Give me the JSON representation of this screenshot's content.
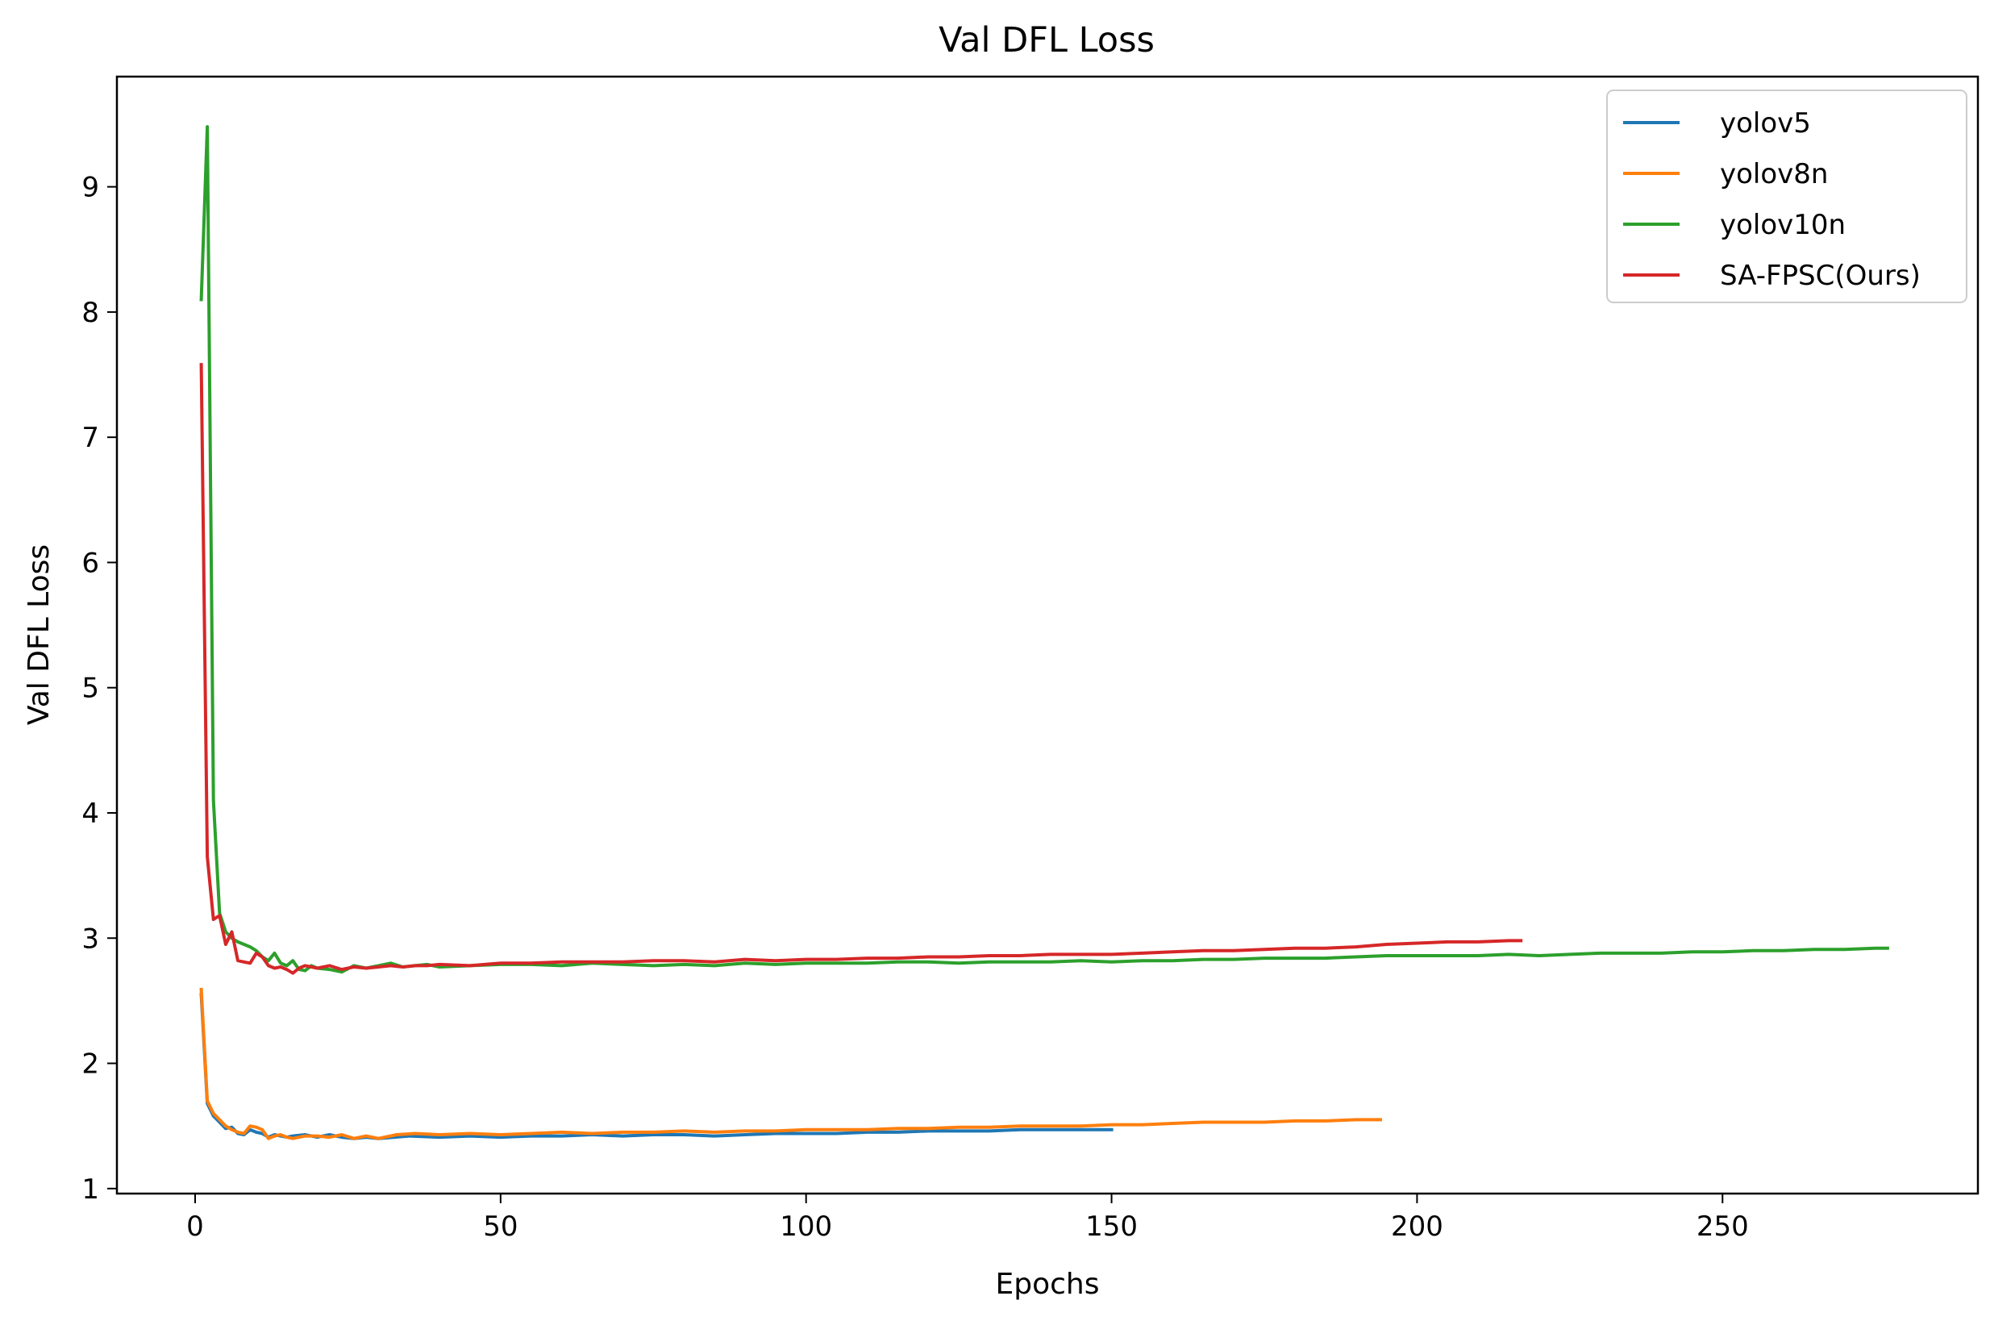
{
  "chart_data": {
    "type": "line",
    "title": "Val DFL Loss",
    "xlabel": "Epochs",
    "ylabel": "Val DFL Loss",
    "xlim": [
      -12.8,
      291.8
    ],
    "ylim": [
      0.96,
      9.88
    ],
    "xticks": [
      0,
      50,
      100,
      150,
      200,
      250
    ],
    "yticks": [
      1,
      2,
      3,
      4,
      5,
      6,
      7,
      8,
      9
    ],
    "grid": false,
    "legend_position": "top-right",
    "series": [
      {
        "name": "yolov5",
        "color": "#1f77b4",
        "points": [
          [
            1,
            2.55
          ],
          [
            2,
            1.68
          ],
          [
            3,
            1.58
          ],
          [
            4,
            1.53
          ],
          [
            5,
            1.48
          ],
          [
            6,
            1.49
          ],
          [
            7,
            1.44
          ],
          [
            8,
            1.43
          ],
          [
            9,
            1.47
          ],
          [
            10,
            1.45
          ],
          [
            11,
            1.44
          ],
          [
            12,
            1.41
          ],
          [
            13,
            1.43
          ],
          [
            14,
            1.42
          ],
          [
            15,
            1.41
          ],
          [
            16,
            1.42
          ],
          [
            18,
            1.43
          ],
          [
            20,
            1.41
          ],
          [
            22,
            1.43
          ],
          [
            24,
            1.41
          ],
          [
            26,
            1.4
          ],
          [
            28,
            1.41
          ],
          [
            30,
            1.4
          ],
          [
            35,
            1.42
          ],
          [
            40,
            1.41
          ],
          [
            45,
            1.42
          ],
          [
            50,
            1.41
          ],
          [
            55,
            1.42
          ],
          [
            60,
            1.42
          ],
          [
            65,
            1.43
          ],
          [
            70,
            1.42
          ],
          [
            75,
            1.43
          ],
          [
            80,
            1.43
          ],
          [
            85,
            1.42
          ],
          [
            90,
            1.43
          ],
          [
            95,
            1.44
          ],
          [
            100,
            1.44
          ],
          [
            105,
            1.44
          ],
          [
            110,
            1.45
          ],
          [
            115,
            1.45
          ],
          [
            120,
            1.46
          ],
          [
            125,
            1.46
          ],
          [
            130,
            1.46
          ],
          [
            135,
            1.47
          ],
          [
            140,
            1.47
          ],
          [
            145,
            1.47
          ],
          [
            150,
            1.47
          ]
        ]
      },
      {
        "name": "yolov8n",
        "color": "#ff7f0e",
        "points": [
          [
            1,
            2.59
          ],
          [
            2,
            1.7
          ],
          [
            3,
            1.6
          ],
          [
            4,
            1.55
          ],
          [
            5,
            1.5
          ],
          [
            6,
            1.47
          ],
          [
            7,
            1.45
          ],
          [
            8,
            1.44
          ],
          [
            9,
            1.5
          ],
          [
            10,
            1.49
          ],
          [
            11,
            1.47
          ],
          [
            12,
            1.4
          ],
          [
            13,
            1.42
          ],
          [
            14,
            1.43
          ],
          [
            15,
            1.41
          ],
          [
            16,
            1.4
          ],
          [
            18,
            1.42
          ],
          [
            20,
            1.42
          ],
          [
            22,
            1.41
          ],
          [
            24,
            1.43
          ],
          [
            26,
            1.4
          ],
          [
            28,
            1.42
          ],
          [
            30,
            1.4
          ],
          [
            33,
            1.43
          ],
          [
            36,
            1.44
          ],
          [
            40,
            1.43
          ],
          [
            45,
            1.44
          ],
          [
            50,
            1.43
          ],
          [
            55,
            1.44
          ],
          [
            60,
            1.45
          ],
          [
            65,
            1.44
          ],
          [
            70,
            1.45
          ],
          [
            75,
            1.45
          ],
          [
            80,
            1.46
          ],
          [
            85,
            1.45
          ],
          [
            90,
            1.46
          ],
          [
            95,
            1.46
          ],
          [
            100,
            1.47
          ],
          [
            105,
            1.47
          ],
          [
            110,
            1.47
          ],
          [
            115,
            1.48
          ],
          [
            120,
            1.48
          ],
          [
            125,
            1.49
          ],
          [
            130,
            1.49
          ],
          [
            135,
            1.5
          ],
          [
            140,
            1.5
          ],
          [
            145,
            1.5
          ],
          [
            150,
            1.51
          ],
          [
            155,
            1.51
          ],
          [
            160,
            1.52
          ],
          [
            165,
            1.53
          ],
          [
            170,
            1.53
          ],
          [
            175,
            1.53
          ],
          [
            180,
            1.54
          ],
          [
            185,
            1.54
          ],
          [
            190,
            1.55
          ],
          [
            194,
            1.55
          ]
        ]
      },
      {
        "name": "yolov10n",
        "color": "#2ca02c",
        "points": [
          [
            1,
            8.1
          ],
          [
            2,
            9.48
          ],
          [
            3,
            4.1
          ],
          [
            4,
            3.2
          ],
          [
            5,
            3.05
          ],
          [
            6,
            3.0
          ],
          [
            7,
            2.97
          ],
          [
            8,
            2.95
          ],
          [
            9,
            2.93
          ],
          [
            10,
            2.9
          ],
          [
            11,
            2.85
          ],
          [
            12,
            2.82
          ],
          [
            13,
            2.88
          ],
          [
            14,
            2.8
          ],
          [
            15,
            2.78
          ],
          [
            16,
            2.82
          ],
          [
            17,
            2.75
          ],
          [
            18,
            2.74
          ],
          [
            19,
            2.78
          ],
          [
            20,
            2.76
          ],
          [
            22,
            2.75
          ],
          [
            24,
            2.73
          ],
          [
            26,
            2.78
          ],
          [
            28,
            2.76
          ],
          [
            30,
            2.78
          ],
          [
            32,
            2.8
          ],
          [
            34,
            2.77
          ],
          [
            36,
            2.78
          ],
          [
            38,
            2.79
          ],
          [
            40,
            2.77
          ],
          [
            45,
            2.78
          ],
          [
            50,
            2.79
          ],
          [
            55,
            2.79
          ],
          [
            60,
            2.78
          ],
          [
            65,
            2.8
          ],
          [
            70,
            2.79
          ],
          [
            75,
            2.78
          ],
          [
            80,
            2.79
          ],
          [
            85,
            2.78
          ],
          [
            90,
            2.8
          ],
          [
            95,
            2.79
          ],
          [
            100,
            2.8
          ],
          [
            105,
            2.8
          ],
          [
            110,
            2.8
          ],
          [
            115,
            2.81
          ],
          [
            120,
            2.81
          ],
          [
            125,
            2.8
          ],
          [
            130,
            2.81
          ],
          [
            135,
            2.81
          ],
          [
            140,
            2.81
          ],
          [
            145,
            2.82
          ],
          [
            150,
            2.81
          ],
          [
            155,
            2.82
          ],
          [
            160,
            2.82
          ],
          [
            165,
            2.83
          ],
          [
            170,
            2.83
          ],
          [
            175,
            2.84
          ],
          [
            180,
            2.84
          ],
          [
            185,
            2.84
          ],
          [
            190,
            2.85
          ],
          [
            195,
            2.86
          ],
          [
            200,
            2.86
          ],
          [
            205,
            2.86
          ],
          [
            210,
            2.86
          ],
          [
            215,
            2.87
          ],
          [
            220,
            2.86
          ],
          [
            225,
            2.87
          ],
          [
            230,
            2.88
          ],
          [
            235,
            2.88
          ],
          [
            240,
            2.88
          ],
          [
            245,
            2.89
          ],
          [
            250,
            2.89
          ],
          [
            255,
            2.9
          ],
          [
            260,
            2.9
          ],
          [
            265,
            2.91
          ],
          [
            270,
            2.91
          ],
          [
            275,
            2.92
          ],
          [
            277,
            2.92
          ]
        ]
      },
      {
        "name": "SA-FPSC(Ours)",
        "color": "#d62728",
        "points": [
          [
            1,
            7.58
          ],
          [
            2,
            3.65
          ],
          [
            3,
            3.15
          ],
          [
            4,
            3.18
          ],
          [
            5,
            2.95
          ],
          [
            6,
            3.05
          ],
          [
            7,
            2.82
          ],
          [
            8,
            2.81
          ],
          [
            9,
            2.8
          ],
          [
            10,
            2.88
          ],
          [
            11,
            2.85
          ],
          [
            12,
            2.78
          ],
          [
            13,
            2.76
          ],
          [
            14,
            2.77
          ],
          [
            15,
            2.75
          ],
          [
            16,
            2.72
          ],
          [
            17,
            2.76
          ],
          [
            18,
            2.78
          ],
          [
            20,
            2.76
          ],
          [
            22,
            2.78
          ],
          [
            24,
            2.75
          ],
          [
            26,
            2.77
          ],
          [
            28,
            2.76
          ],
          [
            30,
            2.77
          ],
          [
            32,
            2.78
          ],
          [
            34,
            2.77
          ],
          [
            36,
            2.78
          ],
          [
            38,
            2.78
          ],
          [
            40,
            2.79
          ],
          [
            45,
            2.78
          ],
          [
            50,
            2.8
          ],
          [
            55,
            2.8
          ],
          [
            60,
            2.81
          ],
          [
            65,
            2.81
          ],
          [
            70,
            2.81
          ],
          [
            75,
            2.82
          ],
          [
            80,
            2.82
          ],
          [
            85,
            2.81
          ],
          [
            90,
            2.83
          ],
          [
            95,
            2.82
          ],
          [
            100,
            2.83
          ],
          [
            105,
            2.83
          ],
          [
            110,
            2.84
          ],
          [
            115,
            2.84
          ],
          [
            120,
            2.85
          ],
          [
            125,
            2.85
          ],
          [
            130,
            2.86
          ],
          [
            135,
            2.86
          ],
          [
            140,
            2.87
          ],
          [
            145,
            2.87
          ],
          [
            150,
            2.87
          ],
          [
            155,
            2.88
          ],
          [
            160,
            2.89
          ],
          [
            165,
            2.9
          ],
          [
            170,
            2.9
          ],
          [
            175,
            2.91
          ],
          [
            180,
            2.92
          ],
          [
            185,
            2.92
          ],
          [
            190,
            2.93
          ],
          [
            195,
            2.95
          ],
          [
            200,
            2.96
          ],
          [
            205,
            2.97
          ],
          [
            210,
            2.97
          ],
          [
            215,
            2.98
          ],
          [
            217,
            2.98
          ]
        ]
      }
    ]
  }
}
